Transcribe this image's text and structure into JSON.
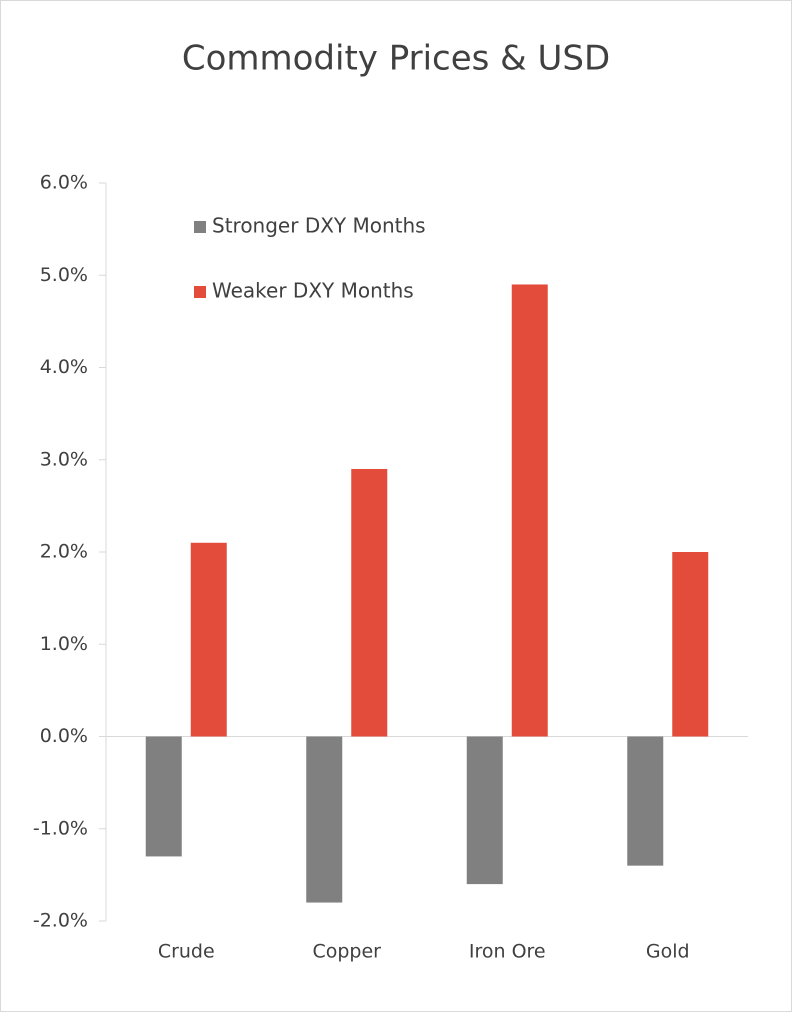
{
  "chart_data": {
    "type": "bar",
    "title": "Commodity Prices & USD",
    "categories": [
      "Crude",
      "Copper",
      "Iron Ore",
      "Gold"
    ],
    "series": [
      {
        "name": "Stronger DXY Months",
        "color": "#808080",
        "values": [
          -1.3,
          -1.8,
          -1.6,
          -1.4
        ]
      },
      {
        "name": "Weaker DXY Months",
        "color": "#e34c3a",
        "values": [
          2.1,
          2.9,
          4.9,
          2.0
        ]
      }
    ],
    "ylim": [
      -2,
      6
    ],
    "yticks": [
      {
        "value": -2,
        "label": "-2.0%"
      },
      {
        "value": -1,
        "label": "-1.0%"
      },
      {
        "value": 0,
        "label": "0.0%"
      },
      {
        "value": 1,
        "label": "1.0%"
      },
      {
        "value": 2,
        "label": "2.0%"
      },
      {
        "value": 3,
        "label": "3.0%"
      },
      {
        "value": 4,
        "label": "4.0%"
      },
      {
        "value": 5,
        "label": "5.0%"
      },
      {
        "value": 6,
        "label": "6.0%"
      }
    ],
    "grid": false,
    "legend": "top-left"
  }
}
